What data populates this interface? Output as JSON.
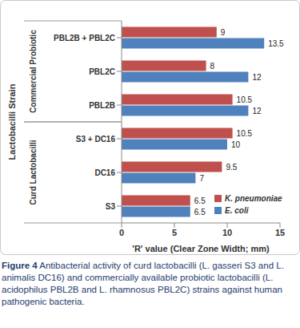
{
  "chart_data": {
    "type": "bar",
    "orientation": "horizontal",
    "x_label": "'R' value (Clear Zone Width; mm)",
    "y_label": "Lactobacilli Strain",
    "categories": [
      "PBL2B + PBL2C",
      "PBL2C",
      "PBL2B",
      "S3 + DC16",
      "DC16",
      "S3"
    ],
    "category_groups": [
      {
        "label": "Commercial Probiotic",
        "categories": [
          "PBL2B + PBL2C",
          "PBL2C",
          "PBL2B"
        ]
      },
      {
        "label": "Curd Lactobacilli",
        "categories": [
          "S3 + DC16",
          "DC16",
          "S3"
        ]
      }
    ],
    "series": [
      {
        "name": "K. pneumoniae",
        "color": "#c0504d",
        "values": [
          9,
          8,
          10.5,
          10.5,
          9.5,
          6.5
        ]
      },
      {
        "name": "E. coli",
        "color": "#4f81bd",
        "values": [
          13.5,
          12,
          12,
          10,
          7,
          6.5
        ]
      }
    ],
    "xlim": [
      0,
      15
    ],
    "xticks": [
      0,
      5,
      10,
      15
    ],
    "grid": false,
    "legend": "lower right",
    "data_labels": true,
    "caption_label": "Figure 4",
    "caption": "Antibacterial activity of curd lactobacilli (L. gasseri S3 and L. animalis DC16) and commercially available probiotic lactobacilli (L. acidophilus PBL2B and L. rhamnosus PBL2C) strains against human pathogenic bacteria."
  }
}
